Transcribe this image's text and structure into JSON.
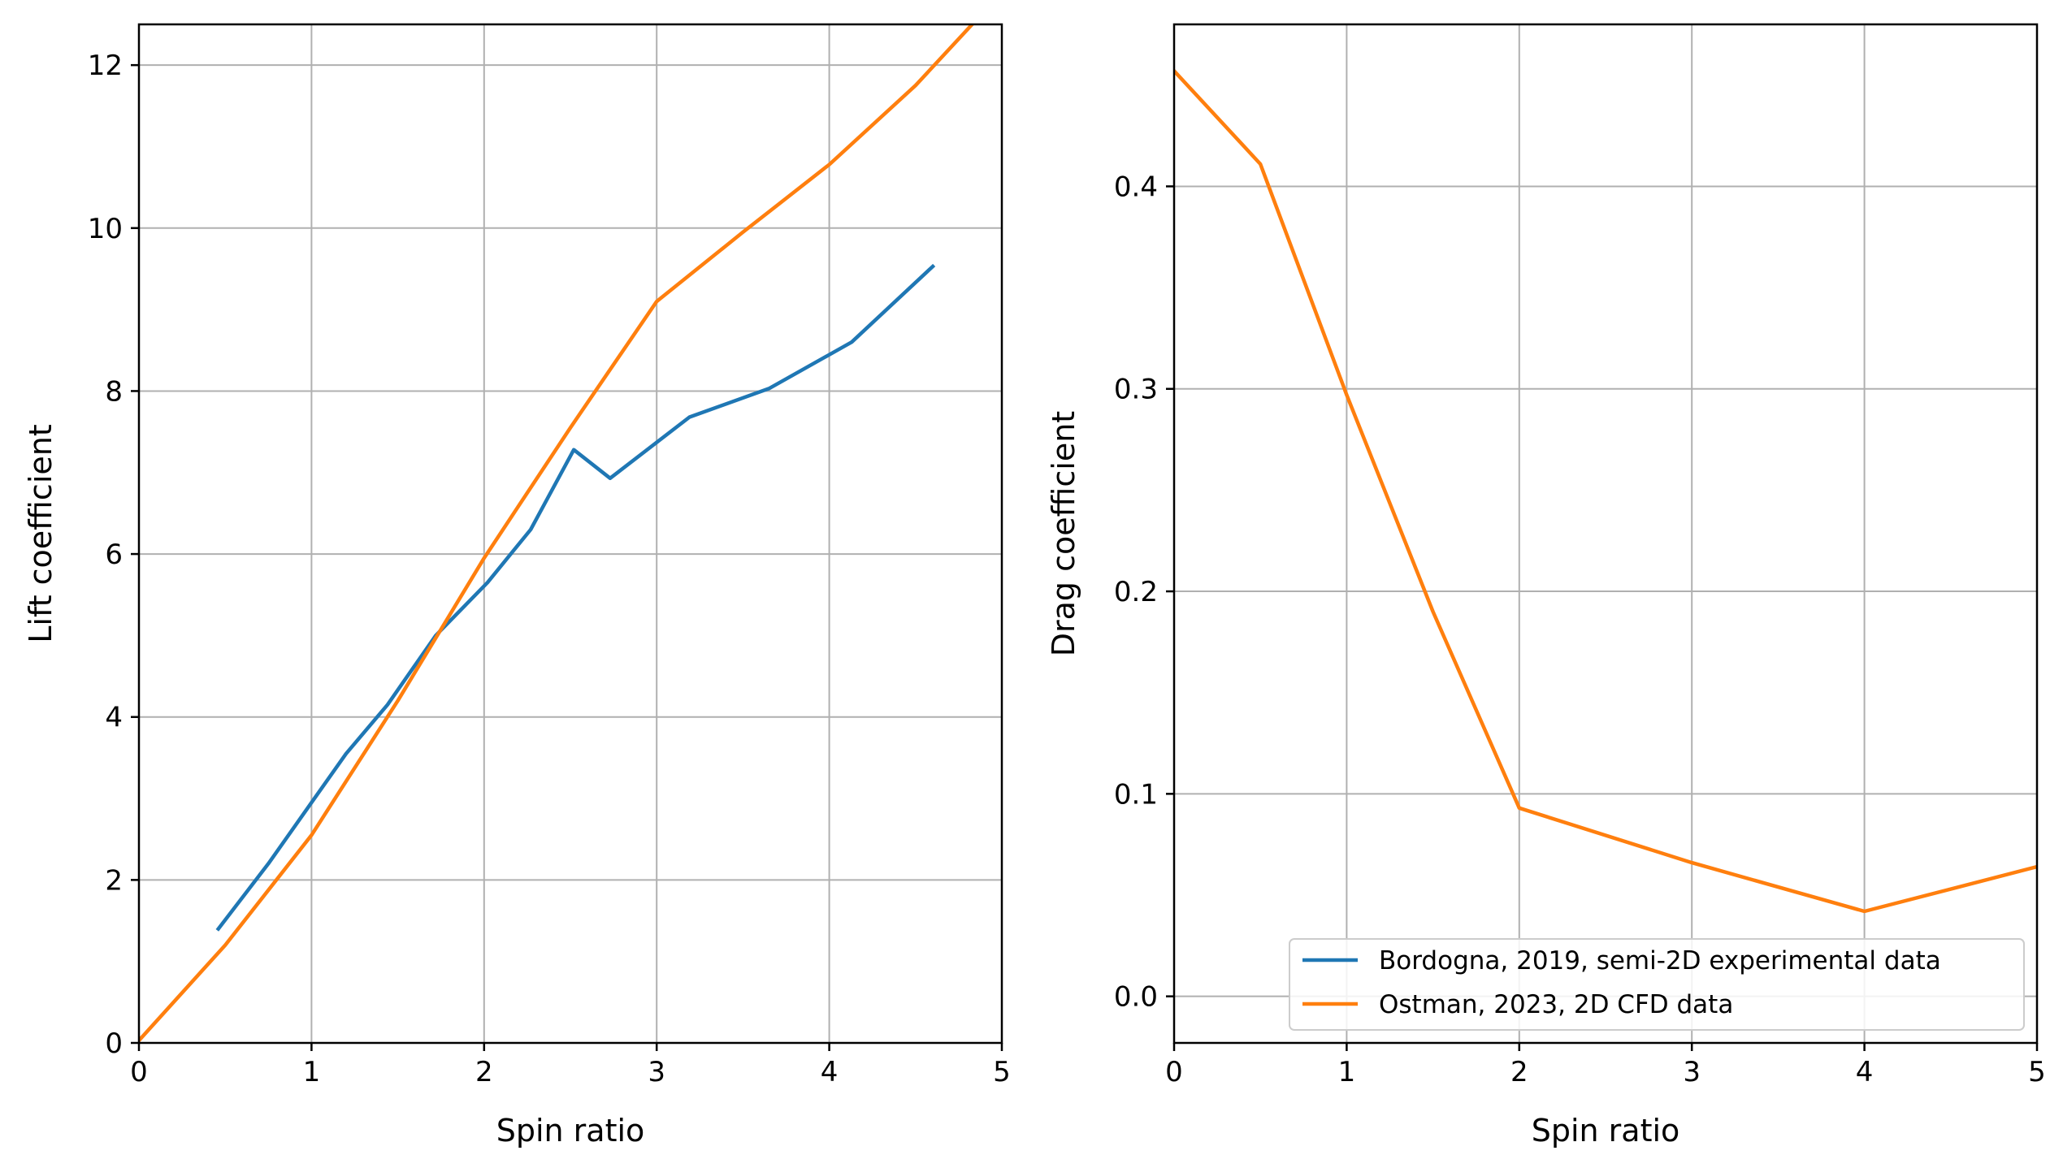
{
  "chart_data": [
    {
      "type": "line",
      "xlabel": "Spin ratio",
      "ylabel": "Lift coefficient",
      "xlim": [
        0,
        5
      ],
      "ylim": [
        0,
        12.5
      ],
      "xticks": [
        "0",
        "1",
        "2",
        "3",
        "4",
        "5"
      ],
      "yticks": [
        "0",
        "2",
        "4",
        "6",
        "8",
        "10",
        "12"
      ],
      "grid": true,
      "series": [
        {
          "name": "Bordogna, 2019, semi-2D experimental data",
          "color": "#1f77b4",
          "x": [
            0.46,
            0.75,
            1.0,
            1.2,
            1.44,
            1.72,
            2.02,
            2.27,
            2.52,
            2.73,
            3.19,
            3.65,
            4.13,
            4.6
          ],
          "y": [
            1.4,
            2.2,
            2.95,
            3.55,
            4.15,
            5.0,
            5.65,
            6.3,
            7.28,
            6.93,
            7.68,
            8.03,
            8.6,
            9.53
          ]
        },
        {
          "name": "Ostman, 2023, 2D CFD data",
          "color": "#ff7f0e",
          "x": [
            0,
            0.5,
            1,
            1.5,
            2,
            2.5,
            3,
            3.5,
            4,
            4.5,
            4.85
          ],
          "y": [
            0.03,
            1.2,
            2.55,
            4.2,
            5.95,
            7.55,
            9.1,
            9.95,
            10.78,
            11.75,
            12.55
          ]
        }
      ]
    },
    {
      "type": "line",
      "xlabel": "Spin ratio",
      "ylabel": "Drag coefficient",
      "xlim": [
        0,
        5
      ],
      "ylim": [
        -0.023,
        0.48
      ],
      "xticks": [
        "0",
        "1",
        "2",
        "3",
        "4",
        "5"
      ],
      "yticks": [
        "0.0",
        "0.1",
        "0.2",
        "0.3",
        "0.4"
      ],
      "grid": true,
      "legend": "lower-right",
      "series": [
        {
          "name": "Ostman, 2023, 2D CFD data",
          "color": "#ff7f0e",
          "x": [
            0,
            0.5,
            1,
            1.5,
            2,
            3,
            4,
            5
          ],
          "y": [
            0.457,
            0.411,
            0.297,
            0.19,
            0.093,
            0.066,
            0.042,
            0.064
          ]
        }
      ]
    }
  ],
  "legend": {
    "entries": [
      {
        "label": "Bordogna, 2019, semi-2D experimental data",
        "color": "#1f77b4"
      },
      {
        "label": "Ostman, 2023, 2D CFD data",
        "color": "#ff7f0e"
      }
    ]
  }
}
